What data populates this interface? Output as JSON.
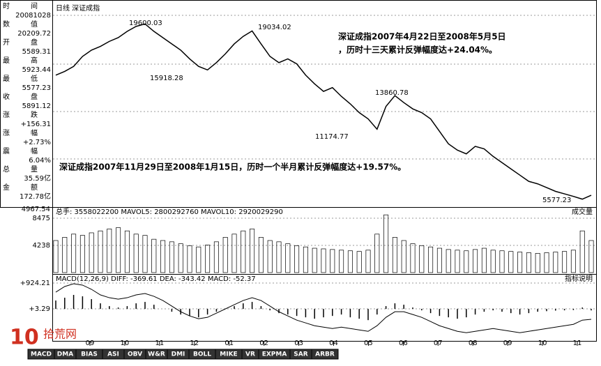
{
  "info_panel": [
    {
      "label": "时间",
      "value": "20081028"
    },
    {
      "label": "数值",
      "value": "20209.72"
    },
    {
      "label": "开盘",
      "value": "5589.31"
    },
    {
      "label": "最高",
      "value": "5923.44"
    },
    {
      "label": "最低",
      "value": "5577.23"
    },
    {
      "label": "收盘",
      "value": "5891.12"
    },
    {
      "label": "涨跌",
      "value": "+156.31"
    },
    {
      "label": "涨幅",
      "value": "+2.73%"
    },
    {
      "label": "震幅",
      "value": "6.04%"
    },
    {
      "label": "总量",
      "value": "35.59亿"
    },
    {
      "label": "金额",
      "value": "172.78亿"
    }
  ],
  "chart_data": [
    {
      "type": "line",
      "title": "日线 深证成指",
      "color": "#000000",
      "values": [
        15500,
        15800,
        16200,
        17000,
        17500,
        17800,
        18200,
        18500,
        19000,
        19400,
        19600.03,
        19000,
        18500,
        18000,
        17500,
        16800,
        16200,
        15918.28,
        16500,
        17200,
        18000,
        18600,
        19034.02,
        18000,
        17000,
        16500,
        16800,
        16400,
        15500,
        14800,
        14200,
        14500,
        13800,
        13200,
        12500,
        12000,
        11174.77,
        13000,
        13860.78,
        13300,
        12800,
        12500,
        12000,
        11000,
        10000,
        9500,
        9200,
        9800,
        9600,
        9000,
        8500,
        8000,
        7500,
        7000,
        6800,
        6500,
        6200,
        6000,
        5800,
        5577.23,
        5891.12
      ],
      "ylim": [
        5000,
        21400
      ],
      "annotations": [
        "19600.03",
        "19034.02",
        "15918.28",
        "13860.78",
        "11174.77",
        "5577.23",
        "深证成指2007年4月22日至2008年5月5日",
        "，历时十三天累计反弹幅度达+24.04%。",
        "深证成指2007年11月29日至2008年1月15日，历时一个半月累计反弹幅度达+19.57%。"
      ]
    },
    {
      "type": "bar",
      "title": "总手: 3558022200 MAVOL5: 2800292760 MAVOL10: 2920029290",
      "right_label": "成交量",
      "top_label": "4967.54",
      "color": "#000000",
      "values": [
        5000,
        5500,
        6000,
        5800,
        6200,
        6500,
        6800,
        7000,
        6500,
        6000,
        5800,
        5200,
        5000,
        4800,
        4500,
        4200,
        4000,
        4300,
        4800,
        5500,
        6000,
        6500,
        6800,
        5500,
        5000,
        4800,
        4500,
        4200,
        4000,
        3800,
        3700,
        3600,
        3500,
        3400,
        3300,
        3500,
        6000,
        9000,
        5500,
        5000,
        4500,
        4200,
        4000,
        3800,
        3600,
        3500,
        3400,
        3600,
        3800,
        3500,
        3400,
        3300,
        3200,
        3100,
        3000,
        3100,
        3200,
        3300,
        3500,
        6500,
        5000
      ],
      "ylim": [
        0,
        10000
      ],
      "yticks": [
        8475,
        4238
      ]
    },
    {
      "type": "macd",
      "title": "MACD(12,26,9) DIFF: -369.61 DEA: -343.42 MACD: -52.37",
      "right_label": "指标说明",
      "color": "#000000",
      "values": [
        300,
        400,
        500,
        450,
        350,
        200,
        100,
        50,
        100,
        200,
        250,
        150,
        0,
        -100,
        -200,
        -250,
        -300,
        -200,
        -100,
        0,
        100,
        200,
        250,
        100,
        -50,
        -150,
        -200,
        -250,
        -300,
        -350,
        -300,
        -250,
        -200,
        -300,
        -350,
        -400,
        -200,
        100,
        200,
        150,
        50,
        -50,
        -150,
        -250,
        -300,
        -350,
        -300,
        -200,
        -100,
        -50,
        -100,
        -150,
        -200,
        -150,
        -100,
        -80,
        -60,
        -50,
        -40,
        50,
        -52.37
      ],
      "diff": [
        600,
        800,
        900,
        850,
        700,
        500,
        400,
        350,
        400,
        500,
        550,
        450,
        300,
        100,
        -100,
        -250,
        -350,
        -300,
        -150,
        0,
        150,
        300,
        400,
        300,
        100,
        -100,
        -250,
        -400,
        -500,
        -600,
        -650,
        -700,
        -650,
        -700,
        -750,
        -800,
        -600,
        -300,
        -100,
        -100,
        -200,
        -300,
        -450,
        -600,
        -700,
        -800,
        -850,
        -800,
        -750,
        -700,
        -750,
        -800,
        -850,
        -800,
        -750,
        -700,
        -650,
        -600,
        -550,
        -400,
        -369.61
      ],
      "ylim": [
        -1167,
        1198
      ],
      "yticks": [
        {
          "value": 924.21,
          "label": "+924.21"
        },
        {
          "value": 3.29,
          "label": "+3.29"
        }
      ]
    }
  ],
  "x_labels": [
    "09",
    "10",
    "11",
    "12",
    "01",
    "02",
    "03",
    "04",
    "05",
    "06",
    "07",
    "08",
    "09",
    "10",
    "11"
  ],
  "tabs": [
    "MACD",
    "DMA",
    "BIAS",
    "ASI",
    "OBV",
    "W&R",
    "DMI",
    "BOLL",
    "MIKE",
    "VR",
    "EXPMA",
    "SAR",
    "ARBR"
  ],
  "logo": "拾荒网"
}
